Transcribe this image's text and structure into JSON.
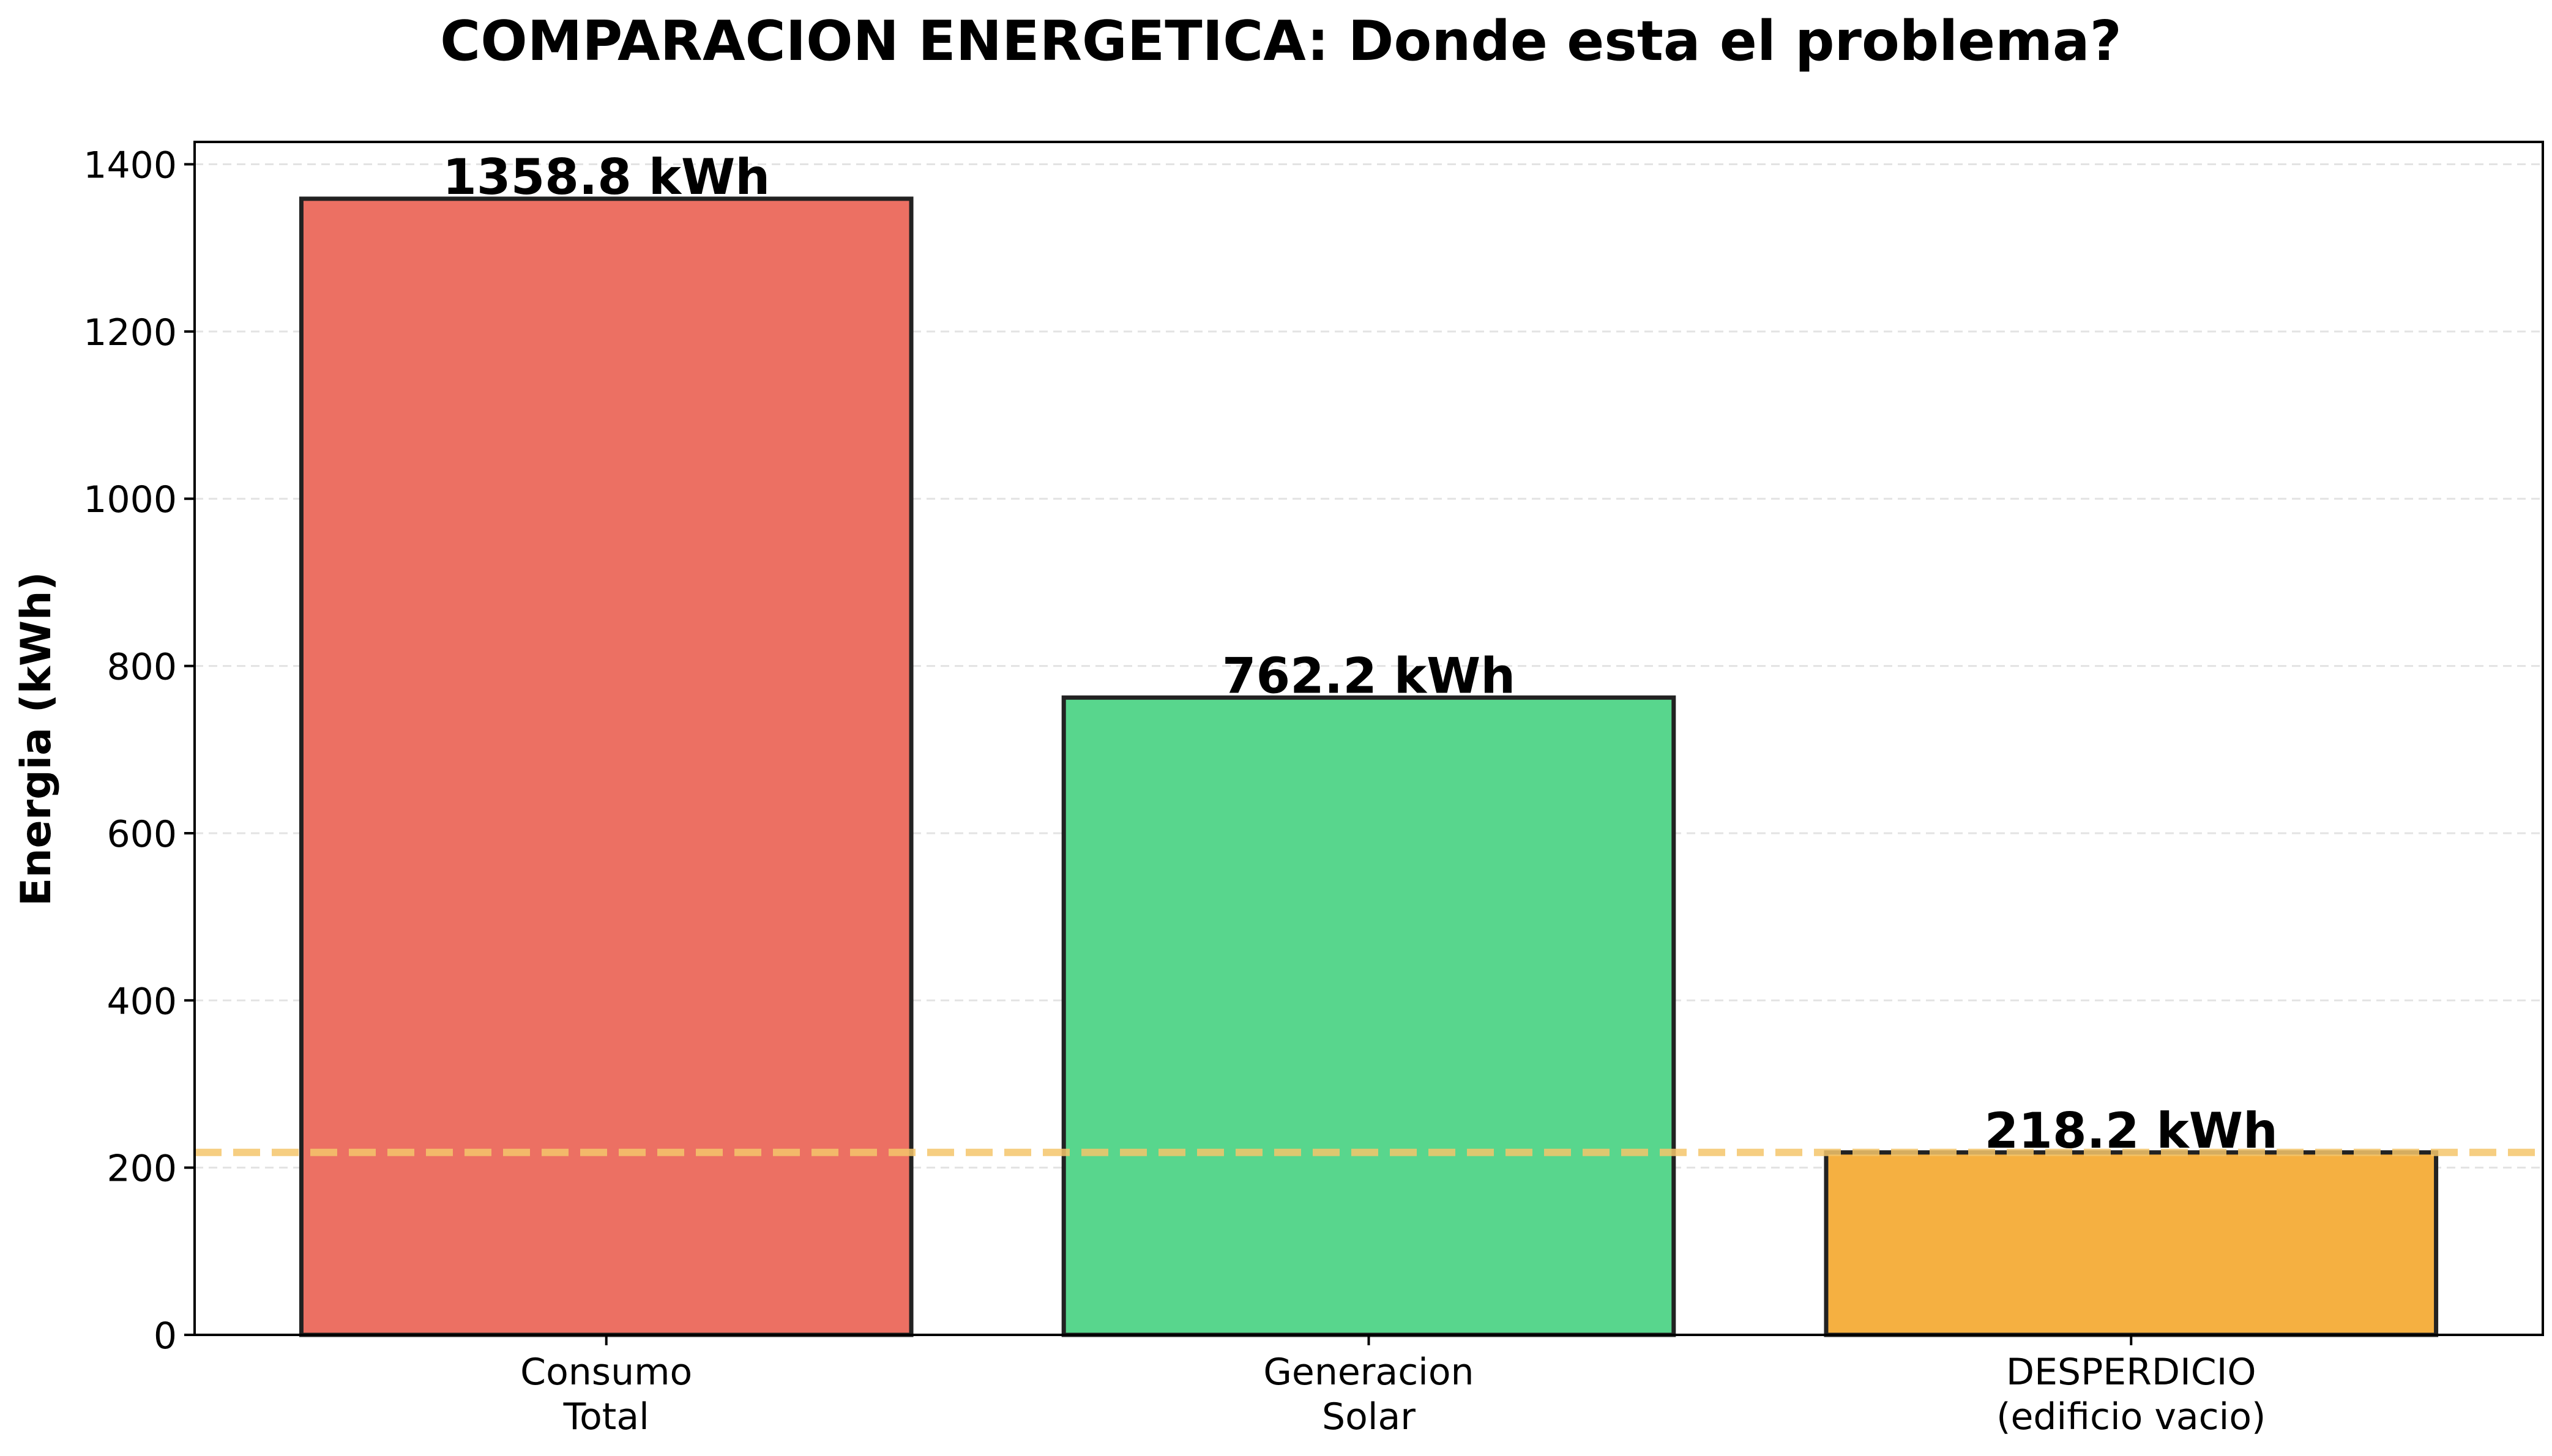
{
  "chart_data": {
    "type": "bar",
    "title": "COMPARACION ENERGETICA: Donde esta el problema?",
    "xlabel": "",
    "ylabel": "Energia (kWh)",
    "ylim": [
      0,
      1426.74
    ],
    "yticks": [
      0,
      200,
      400,
      600,
      800,
      1000,
      1200,
      1400
    ],
    "grid": "horizontal dashed",
    "categories": [
      [
        "Consumo",
        "Total"
      ],
      [
        "Generacion",
        "Solar"
      ],
      [
        "DESPERDICIO",
        "(edificio vacio)"
      ]
    ],
    "values": [
      1358.8,
      762.2,
      218.2
    ],
    "value_labels": [
      "1358.8 kWh",
      "762.2 kWh",
      "218.2 kWh"
    ],
    "colors": [
      "#ec7063",
      "#58d68d",
      "#f5b041"
    ],
    "reference_line": {
      "value": 218.2,
      "style": "dashed",
      "color": "#f5c56b"
    }
  }
}
